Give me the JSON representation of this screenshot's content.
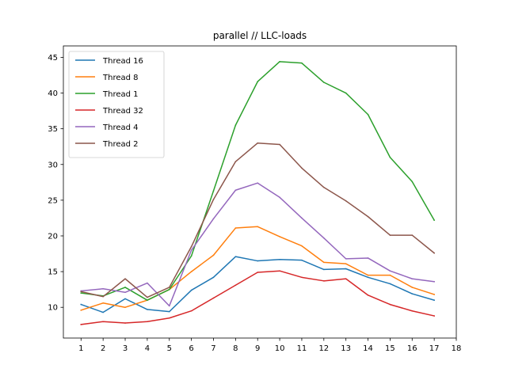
{
  "chart_data": {
    "type": "line",
    "title": "parallel // LLC-loads",
    "xlabel": "",
    "ylabel": "",
    "xlim": [
      0.2,
      18
    ],
    "ylim": [
      5.7,
      46.6
    ],
    "x": [
      1,
      2,
      3,
      4,
      5,
      6,
      7,
      8,
      9,
      10,
      11,
      12,
      13,
      14,
      15,
      16,
      17
    ],
    "x_ticks": [
      1,
      2,
      3,
      4,
      5,
      6,
      7,
      8,
      9,
      10,
      11,
      12,
      13,
      14,
      15,
      16,
      17,
      18
    ],
    "y_ticks": [
      10,
      15,
      20,
      25,
      30,
      35,
      40,
      45
    ],
    "grid": false,
    "legend_position": "top-left",
    "series": [
      {
        "name": "Thread 16",
        "color": "#1f77b4",
        "values": [
          10.4,
          9.3,
          11.2,
          9.7,
          9.4,
          12.4,
          14.2,
          17.1,
          16.5,
          16.7,
          16.6,
          15.3,
          15.4,
          14.2,
          13.3,
          11.9,
          11.0
        ]
      },
      {
        "name": "Thread 8",
        "color": "#ff7f0e",
        "values": [
          9.6,
          10.6,
          10.0,
          11.0,
          12.5,
          15.0,
          17.3,
          21.1,
          21.3,
          19.9,
          18.6,
          16.3,
          16.1,
          14.5,
          14.5,
          12.8,
          11.8
        ]
      },
      {
        "name": "Thread 1",
        "color": "#2ca02c",
        "values": [
          12.0,
          11.6,
          12.8,
          11.0,
          12.5,
          17.2,
          26.3,
          35.5,
          41.6,
          44.4,
          44.2,
          41.5,
          40.0,
          37.0,
          31.0,
          27.6,
          22.2
        ]
      },
      {
        "name": "Thread 32",
        "color": "#d62728",
        "values": [
          7.6,
          8.0,
          7.8,
          8.0,
          8.5,
          9.5,
          11.3,
          13.1,
          14.9,
          15.1,
          14.2,
          13.7,
          14.0,
          11.7,
          10.4,
          9.5,
          8.8
        ]
      },
      {
        "name": "Thread 4",
        "color": "#9467bd",
        "values": [
          12.3,
          12.6,
          12.1,
          13.4,
          10.2,
          18.0,
          22.4,
          26.4,
          27.4,
          25.4,
          22.5,
          19.7,
          16.8,
          16.9,
          15.1,
          14.0,
          13.6
        ]
      },
      {
        "name": "Thread 2",
        "color": "#8c564b",
        "values": [
          12.2,
          11.5,
          14.0,
          11.4,
          12.8,
          18.5,
          25.1,
          30.4,
          33.0,
          32.8,
          29.5,
          26.8,
          24.9,
          22.7,
          20.1,
          20.1,
          17.6
        ]
      }
    ]
  }
}
